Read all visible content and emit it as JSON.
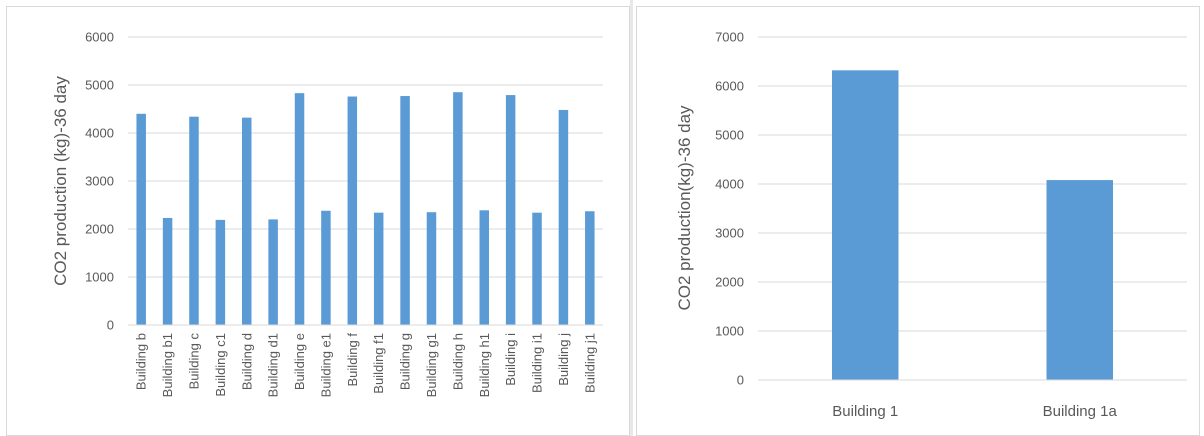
{
  "chart_data": [
    {
      "type": "bar",
      "title": "",
      "xlabel": "",
      "ylabel": "CO2 production (kg)-36 day",
      "ylim": [
        0,
        6000
      ],
      "yticks": [
        0,
        1000,
        2000,
        3000,
        4000,
        5000,
        6000
      ],
      "grid": true,
      "legend": "none",
      "color": "#5b9bd5",
      "categories": [
        "Building b",
        "Building b1",
        "Building c",
        "Building c1",
        "Building d",
        "Building d1",
        "Building e",
        "Building e1",
        "Building f",
        "Building f1",
        "Building g",
        "Building g1",
        "Building h",
        "Building h1",
        "Building i",
        "Building i1",
        "Building j",
        "Building j1"
      ],
      "values": [
        4400,
        2230,
        4340,
        2190,
        4320,
        2200,
        4830,
        2380,
        4760,
        2340,
        4770,
        2350,
        4850,
        2390,
        4790,
        2340,
        4480,
        2370
      ]
    },
    {
      "type": "bar",
      "title": "",
      "xlabel": "",
      "ylabel": "CO2 production(kg)-36 day",
      "ylim": [
        0,
        7000
      ],
      "yticks": [
        0,
        1000,
        2000,
        3000,
        4000,
        5000,
        6000,
        7000
      ],
      "grid": true,
      "legend": "none",
      "color": "#5b9bd5",
      "categories": [
        "Building 1",
        "Building 1a"
      ],
      "values": [
        6320,
        4080
      ]
    }
  ]
}
